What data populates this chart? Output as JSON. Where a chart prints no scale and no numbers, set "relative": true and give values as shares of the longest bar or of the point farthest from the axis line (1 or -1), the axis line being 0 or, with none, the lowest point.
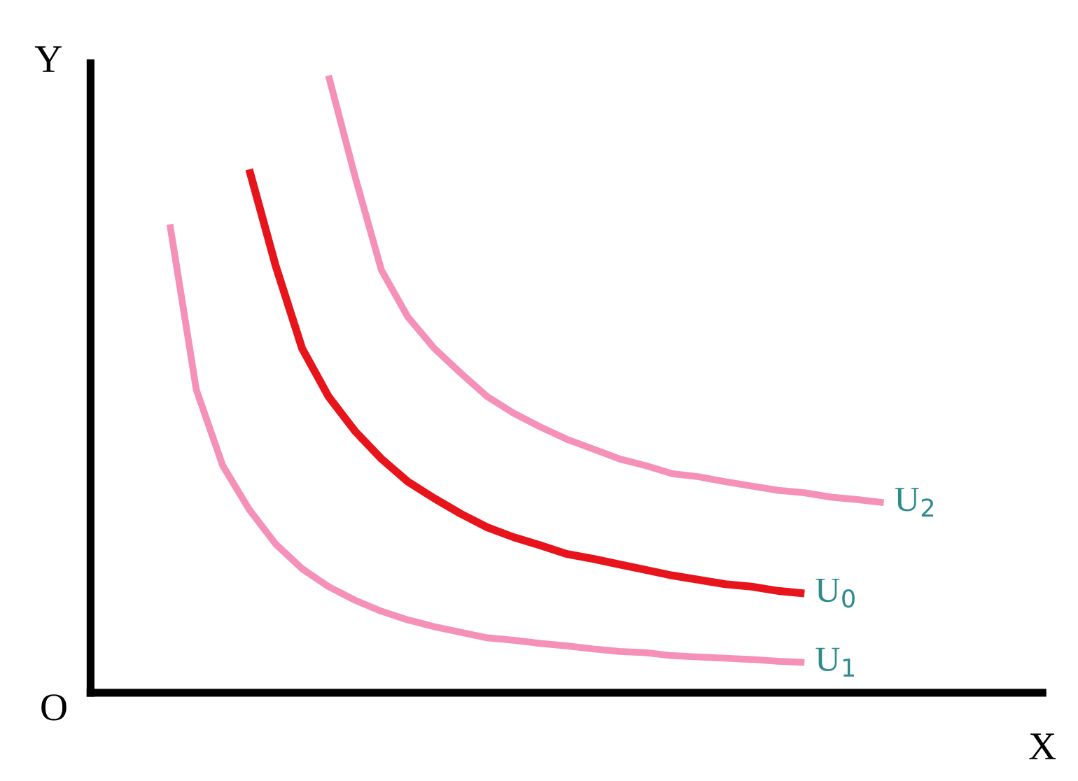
{
  "chart_data": {
    "type": "line",
    "relative": true,
    "xlabel": "X",
    "ylabel": "Y",
    "annotations": [
      "O"
    ],
    "categories": [
      null,
      null,
      null,
      null,
      null,
      null,
      null,
      null,
      null,
      null,
      null,
      null,
      null,
      null,
      null,
      null,
      null,
      null,
      null,
      null,
      null,
      null,
      null,
      null,
      null,
      null,
      null,
      null,
      null,
      null,
      null,
      null,
      null,
      null,
      null,
      null
    ],
    "series": [
      {
        "name": "U$_{2}$",
        "color": "#f590b8",
        "values": [
          null,
          null,
          null,
          null,
          null,
          null,
          null,
          null,
          null,
          1.0,
          0.837,
          0.685,
          0.609,
          0.558,
          0.518,
          0.48,
          0.453,
          0.431,
          0.411,
          0.395,
          0.379,
          0.368,
          0.355,
          0.35,
          0.342,
          0.335,
          0.328,
          0.324,
          0.317,
          0.313,
          0.308,
          null,
          null,
          null,
          null,
          null
        ]
      },
      {
        "name": "U$_{0}$",
        "color": "#e8141b",
        "values": [
          null,
          null,
          null,
          null,
          null,
          null,
          0.848,
          0.692,
          0.558,
          0.48,
          0.424,
          0.379,
          0.342,
          0.315,
          0.29,
          0.268,
          0.252,
          0.239,
          0.225,
          0.217,
          0.208,
          0.199,
          0.19,
          0.183,
          0.176,
          0.172,
          0.165,
          0.161,
          null,
          null,
          null,
          null,
          null,
          null,
          null,
          null
        ]
      },
      {
        "name": "U$_{1}$",
        "color": "#f590b8",
        "values": [
          null,
          null,
          null,
          0.759,
          0.491,
          0.368,
          0.297,
          0.241,
          0.201,
          0.172,
          0.15,
          0.132,
          0.118,
          0.107,
          0.098,
          0.089,
          0.085,
          0.08,
          0.076,
          0.071,
          0.067,
          0.065,
          0.06,
          0.058,
          0.056,
          0.054,
          0.051,
          0.049,
          null,
          null,
          null,
          null,
          null,
          null,
          null,
          null
        ]
      }
    ],
    "legend": false
  }
}
